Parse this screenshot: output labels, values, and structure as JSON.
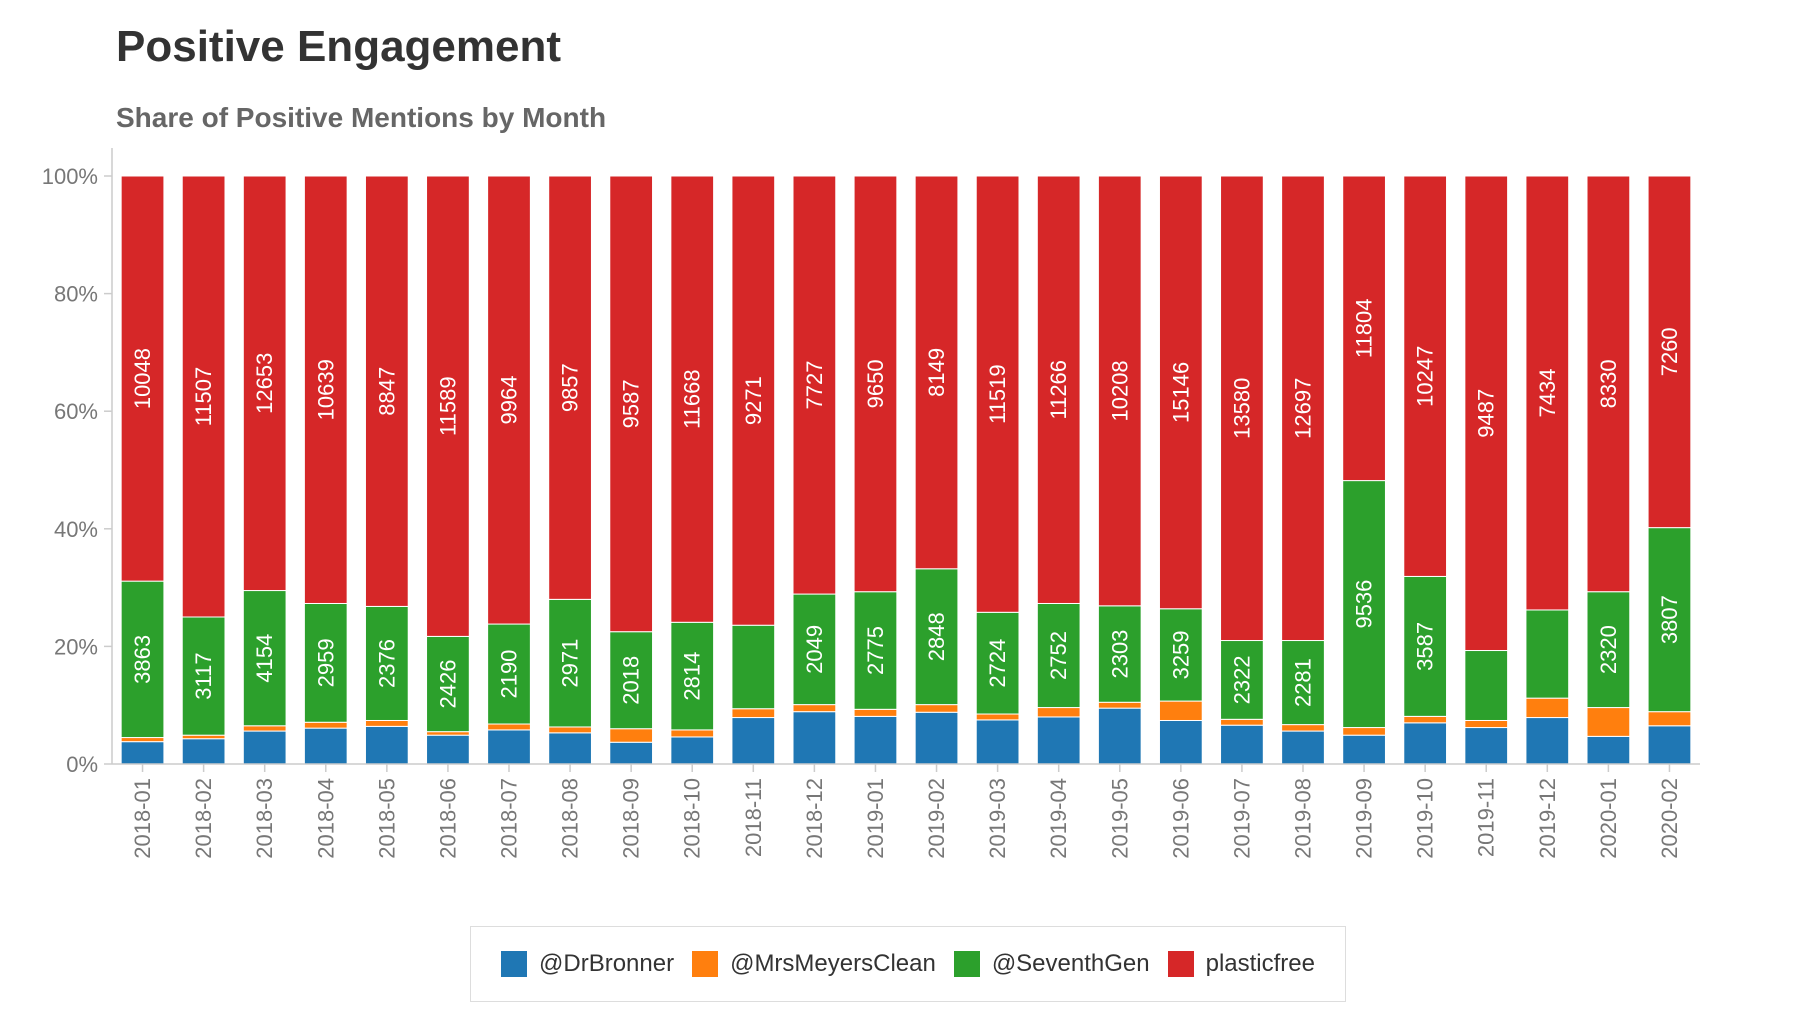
{
  "title": "Positive Engagement",
  "chart_data": {
    "type": "bar",
    "stacked": true,
    "normalized": true,
    "subtitle": "Share of Positive Mentions by Month",
    "categories": [
      "2018-01",
      "2018-02",
      "2018-03",
      "2018-04",
      "2018-05",
      "2018-06",
      "2018-07",
      "2018-08",
      "2018-09",
      "2018-10",
      "2018-11",
      "2018-12",
      "2019-01",
      "2019-02",
      "2019-03",
      "2019-04",
      "2019-05",
      "2019-06",
      "2019-07",
      "2019-08",
      "2019-09",
      "2019-10",
      "2019-11",
      "2019-12",
      "2020-01",
      "2020-02"
    ],
    "y_ticks": [
      "0%",
      "20%",
      "40%",
      "60%",
      "80%",
      "100%"
    ],
    "ylim": [
      0,
      100
    ],
    "grid": false,
    "legend_position": "bottom",
    "series": [
      {
        "name": "@DrBronner",
        "color": "#1f77b4",
        "share_percent": [
          3.8,
          4.3,
          5.6,
          6.1,
          6.4,
          4.9,
          5.8,
          5.3,
          3.7,
          4.6,
          7.9,
          8.9,
          8.1,
          8.8,
          7.5,
          8.0,
          9.5,
          7.4,
          6.6,
          5.6,
          4.9,
          7.0,
          6.2,
          7.9,
          4.7,
          6.5
        ],
        "labels": [
          null,
          null,
          null,
          null,
          null,
          null,
          null,
          null,
          null,
          null,
          null,
          null,
          null,
          null,
          null,
          null,
          null,
          null,
          null,
          null,
          null,
          null,
          null,
          null,
          null,
          null
        ]
      },
      {
        "name": "@MrsMeyersClean",
        "color": "#ff7f0e",
        "share_percent": [
          0.7,
          0.6,
          0.9,
          1.0,
          1.0,
          0.6,
          1.0,
          1.0,
          2.3,
          1.2,
          1.5,
          1.2,
          1.2,
          1.3,
          1.0,
          1.6,
          1.0,
          3.3,
          1.0,
          1.1,
          1.3,
          1.1,
          1.2,
          3.3,
          4.9,
          2.4
        ],
        "labels": [
          null,
          null,
          null,
          null,
          null,
          null,
          null,
          null,
          null,
          null,
          null,
          null,
          null,
          null,
          null,
          null,
          null,
          null,
          null,
          null,
          null,
          null,
          null,
          null,
          null,
          null
        ]
      },
      {
        "name": "@SeventhGen",
        "color": "#2ca02c",
        "share_percent": [
          26.6,
          20.1,
          23.0,
          20.2,
          19.4,
          16.2,
          17.0,
          21.7,
          16.5,
          18.3,
          14.2,
          18.8,
          20.0,
          23.1,
          17.3,
          17.7,
          16.4,
          15.7,
          13.4,
          14.3,
          42.0,
          23.8,
          11.9,
          15.0,
          19.7,
          31.3
        ],
        "labels": [
          "3863",
          "3117",
          "4154",
          "2959",
          "2376",
          "2426",
          "2190",
          "2971",
          "2018",
          "2814",
          null,
          "2049",
          "2775",
          "2848",
          "2724",
          "2752",
          "2303",
          "3259",
          "2322",
          "2281",
          "9536",
          "3587",
          null,
          null,
          "2320",
          "3807"
        ]
      },
      {
        "name": "plasticfree",
        "color": "#d62728",
        "share_percent": [
          68.9,
          75.0,
          70.5,
          72.7,
          73.2,
          78.3,
          76.2,
          72.0,
          77.5,
          75.9,
          76.4,
          71.1,
          70.7,
          66.8,
          74.2,
          72.7,
          73.1,
          73.6,
          79.0,
          79.0,
          51.8,
          68.1,
          80.7,
          73.8,
          70.7,
          59.8
        ],
        "labels": [
          "10048",
          "11507",
          "12653",
          "10639",
          "8847",
          "11589",
          "9964",
          "9857",
          "9587",
          "11668",
          "9271",
          "7727",
          "9650",
          "8149",
          "11519",
          "11266",
          "10208",
          "15146",
          "13580",
          "12697",
          "11804",
          "10247",
          "9487",
          "7434",
          "8330",
          "7260"
        ]
      }
    ]
  }
}
